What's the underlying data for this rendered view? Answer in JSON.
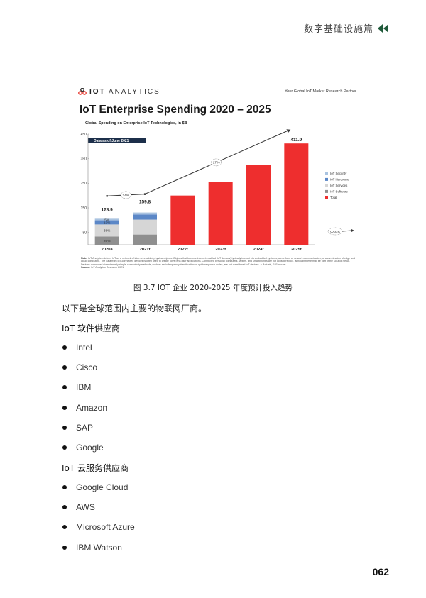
{
  "header": {
    "title": "数字基础设施篇",
    "icon": "double-chevron-left-icon",
    "icon_color": "#1f5a3a"
  },
  "figure": {
    "brand_prefix": "IOT",
    "brand_suffix": "ANALYTICS",
    "tagline": "Your Global IoT Market Research Partner",
    "title": "IoT Enterprise Spending 2020 – 2025",
    "subtitle": "Global Spending on Enterprise IoT Technologies, in $B",
    "note_label": "Note:",
    "note_text": "IoT Analytics defines IoT as a network of internet-enabled physical objects. Objects that become internet-enabled (IoT devices) typically interact via embedded systems, some form of network communication, or a combination of edge and cloud computing. The data from IoT-connected devices is often used to create novel end-user applications. Connected personal computers, tablets, and smartphones are not considered IoT, although these may be part of the solution setup. Devices connected via extremely simple connectivity methods, such as radio frequency identification or quick response codes, are not considered IoT devices.   a. Actuals, F: Forecast",
    "source_label": "Source:",
    "source_text": "IoT Analytics Research 2021"
  },
  "chart_data": {
    "type": "bar",
    "title": "IoT Enterprise Spending 2020 – 2025",
    "subtitle": "Global Spending on Enterprise IoT Technologies, in $B",
    "badge": "Data as of June 2021",
    "categories": [
      "2020a",
      "2021f",
      "2022f",
      "2023f",
      "2024f",
      "2025f"
    ],
    "yticks": [
      0,
      50,
      150,
      250,
      350,
      450
    ],
    "ylim": [
      0,
      450
    ],
    "totals": [
      128.9,
      159.8,
      200,
      255,
      325,
      411.9
    ],
    "total_labels": [
      "128.9",
      "159.8",
      "",
      "",
      "",
      "411.9"
    ],
    "stacked_series": [
      {
        "name": "IoT Security",
        "color": "#a9c3e0",
        "values": [
          6.4,
          8.0
        ],
        "labels": [
          "5%",
          ""
        ]
      },
      {
        "name": "IoT Hardware",
        "color": "#5b87c7",
        "values": [
          16.8,
          20.8
        ],
        "labels": [
          "13%",
          ""
        ]
      },
      {
        "name": "IoT Services",
        "color": "#d6d6d6",
        "values": [
          49.0,
          60.7
        ],
        "labels": [
          "38%",
          ""
        ]
      },
      {
        "name": "IoT Software",
        "color": "#8f8f8f",
        "values": [
          33.5,
          41.5
        ],
        "labels": [
          "26%",
          ""
        ]
      }
    ],
    "total_series": {
      "name": "Total",
      "color": "#ee2e2e"
    },
    "trend_labels": [
      "24%",
      "27%"
    ],
    "cagr_label": "CAGR",
    "legend": [
      "IoT Security",
      "IoT Hardware",
      "IoT Services",
      "IoT Software",
      "Total"
    ],
    "legend_position": "right"
  },
  "caption": "图 3.7   IOT 企业 2020-2025 年度预计投入趋势",
  "intro": "以下是全球范围内主要的物联网厂商。",
  "sections": [
    {
      "heading": "IoT 软件供应商",
      "items": [
        "Intel",
        "Cisco",
        "IBM",
        "Amazon",
        "SAP",
        "Google"
      ]
    },
    {
      "heading": "IoT 云服务供应商",
      "items": [
        "Google Cloud",
        "AWS",
        "Microsoft Azure",
        "IBM Watson"
      ]
    }
  ],
  "page_number": "062"
}
